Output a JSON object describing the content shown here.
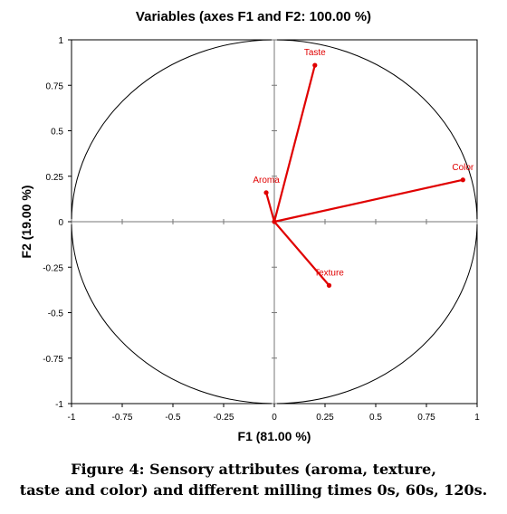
{
  "caption": {
    "line1": "Figure 4: Sensory attributes (aroma, texture,",
    "line2": "taste and color) and different milling times 0s, 60s, 120s."
  },
  "chart_data": {
    "type": "scatter",
    "subtype": "correlation-circle",
    "title": "Variables (axes F1 and F2: 100.00 %)",
    "xlabel": "F1 (81.00 %)",
    "ylabel": "F2 (19.00 %)",
    "xlim": [
      -1,
      1
    ],
    "ylim": [
      -1,
      1
    ],
    "xticks": [
      "-1",
      "-0.75",
      "-0.5",
      "-0.25",
      "0",
      "0.25",
      "0.5",
      "0.75",
      "1"
    ],
    "yticks": [
      "1",
      "0.75",
      "0.5",
      "0.25",
      "0",
      "-0.25",
      "-0.5",
      "-0.75",
      "-1"
    ],
    "grid": false,
    "unit_circle": true,
    "vector_color": "#e00000",
    "points": [
      {
        "label": "Taste",
        "x": 0.2,
        "y": 0.86
      },
      {
        "label": "Color",
        "x": 0.93,
        "y": 0.23
      },
      {
        "label": "Aroma",
        "x": -0.04,
        "y": 0.16
      },
      {
        "label": "Texture",
        "x": 0.27,
        "y": -0.35
      }
    ]
  }
}
